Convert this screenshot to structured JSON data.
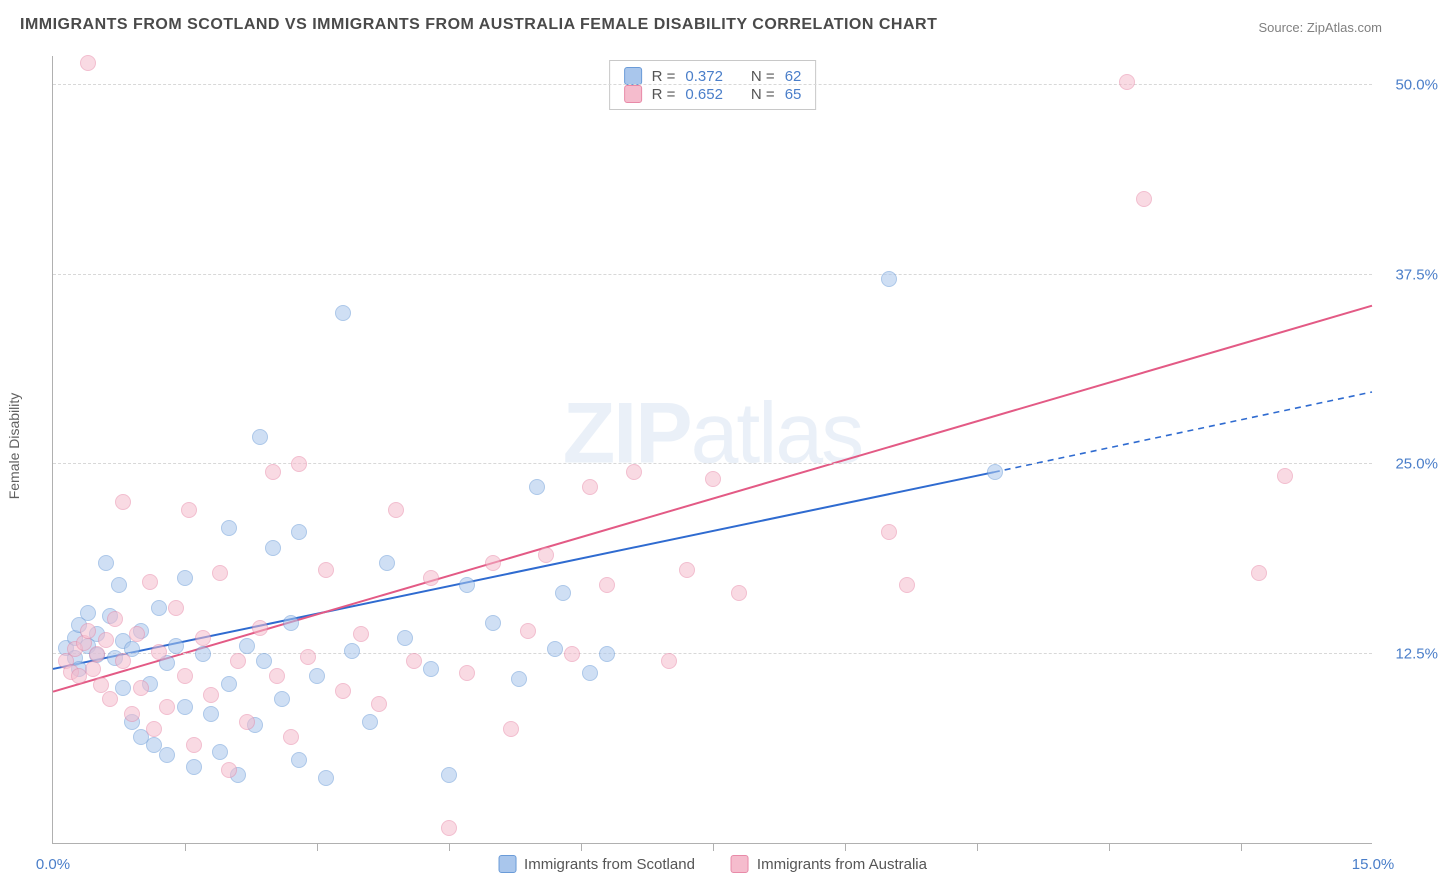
{
  "title": "IMMIGRANTS FROM SCOTLAND VS IMMIGRANTS FROM AUSTRALIA FEMALE DISABILITY CORRELATION CHART",
  "source": "Source: ZipAtlas.com",
  "ylabel": "Female Disability",
  "watermark_a": "ZIP",
  "watermark_b": "atlas",
  "chart": {
    "type": "scatter",
    "xlim": [
      0.0,
      15.0
    ],
    "ylim": [
      0.0,
      52.0
    ],
    "yticks": [
      12.5,
      25.0,
      37.5,
      50.0
    ],
    "ytick_labels": [
      "12.5%",
      "25.0%",
      "37.5%",
      "50.0%"
    ],
    "xlim_labels": [
      "0.0%",
      "15.0%"
    ],
    "xtick_positions": [
      1.5,
      3.0,
      4.5,
      6.0,
      7.5,
      9.0,
      10.5,
      12.0,
      13.5
    ],
    "background_color": "#ffffff",
    "grid_color": "#d8d8d8",
    "axis_color": "#b0b0b0",
    "marker_radius": 8,
    "marker_opacity": 0.55,
    "series": [
      {
        "name": "Immigrants from Scotland",
        "color_fill": "#a9c6ec",
        "color_stroke": "#6a9bd8",
        "r": 0.372,
        "n": 62,
        "trend": {
          "x1": 0.0,
          "y1": 11.5,
          "x2": 10.7,
          "y2": 24.5,
          "dash_x2": 15.0,
          "dash_y2": 29.8,
          "color": "#2f6bd0",
          "width": 2
        },
        "points": [
          [
            0.15,
            12.9
          ],
          [
            0.25,
            13.5
          ],
          [
            0.25,
            12.2
          ],
          [
            0.3,
            14.4
          ],
          [
            0.3,
            11.5
          ],
          [
            0.4,
            13.0
          ],
          [
            0.4,
            15.2
          ],
          [
            0.5,
            12.4
          ],
          [
            0.5,
            13.8
          ],
          [
            0.6,
            18.5
          ],
          [
            0.65,
            15.0
          ],
          [
            0.7,
            12.2
          ],
          [
            0.75,
            17.0
          ],
          [
            0.8,
            13.3
          ],
          [
            0.8,
            10.2
          ],
          [
            0.9,
            12.8
          ],
          [
            0.9,
            8.0
          ],
          [
            1.0,
            14.0
          ],
          [
            1.0,
            7.0
          ],
          [
            1.1,
            10.5
          ],
          [
            1.15,
            6.5
          ],
          [
            1.2,
            15.5
          ],
          [
            1.3,
            11.9
          ],
          [
            1.3,
            5.8
          ],
          [
            1.4,
            13.0
          ],
          [
            1.5,
            17.5
          ],
          [
            1.5,
            9.0
          ],
          [
            1.6,
            5.0
          ],
          [
            1.7,
            12.5
          ],
          [
            1.8,
            8.5
          ],
          [
            1.9,
            6.0
          ],
          [
            2.0,
            20.8
          ],
          [
            2.0,
            10.5
          ],
          [
            2.1,
            4.5
          ],
          [
            2.2,
            13.0
          ],
          [
            2.3,
            7.8
          ],
          [
            2.35,
            26.8
          ],
          [
            2.4,
            12.0
          ],
          [
            2.5,
            19.5
          ],
          [
            2.6,
            9.5
          ],
          [
            2.7,
            14.5
          ],
          [
            2.8,
            5.5
          ],
          [
            2.8,
            20.5
          ],
          [
            3.0,
            11.0
          ],
          [
            3.1,
            4.3
          ],
          [
            3.3,
            35.0
          ],
          [
            3.4,
            12.7
          ],
          [
            3.6,
            8.0
          ],
          [
            3.8,
            18.5
          ],
          [
            4.0,
            13.5
          ],
          [
            4.3,
            11.5
          ],
          [
            4.5,
            4.5
          ],
          [
            4.7,
            17.0
          ],
          [
            5.0,
            14.5
          ],
          [
            5.3,
            10.8
          ],
          [
            5.5,
            23.5
          ],
          [
            5.7,
            12.8
          ],
          [
            5.8,
            16.5
          ],
          [
            6.1,
            11.2
          ],
          [
            6.3,
            12.5
          ],
          [
            9.5,
            37.2
          ],
          [
            10.7,
            24.5
          ]
        ]
      },
      {
        "name": "Immigrants from Australia",
        "color_fill": "#f5bccd",
        "color_stroke": "#e88aa8",
        "r": 0.652,
        "n": 65,
        "trend": {
          "x1": 0.0,
          "y1": 10.0,
          "x2": 15.0,
          "y2": 35.5,
          "color": "#e35a85",
          "width": 2
        },
        "points": [
          [
            0.15,
            12.0
          ],
          [
            0.2,
            11.3
          ],
          [
            0.25,
            12.8
          ],
          [
            0.3,
            11.0
          ],
          [
            0.35,
            13.2
          ],
          [
            0.4,
            14.0
          ],
          [
            0.45,
            11.5
          ],
          [
            0.5,
            12.5
          ],
          [
            0.55,
            10.4
          ],
          [
            0.6,
            13.4
          ],
          [
            0.65,
            9.5
          ],
          [
            0.7,
            14.8
          ],
          [
            0.8,
            22.5
          ],
          [
            0.8,
            12.0
          ],
          [
            0.9,
            8.5
          ],
          [
            0.95,
            13.8
          ],
          [
            1.0,
            10.2
          ],
          [
            1.1,
            17.2
          ],
          [
            1.15,
            7.5
          ],
          [
            1.2,
            12.6
          ],
          [
            1.3,
            9.0
          ],
          [
            1.4,
            15.5
          ],
          [
            1.5,
            11.0
          ],
          [
            1.55,
            22.0
          ],
          [
            1.6,
            6.5
          ],
          [
            1.7,
            13.5
          ],
          [
            1.8,
            9.8
          ],
          [
            1.9,
            17.8
          ],
          [
            2.0,
            4.8
          ],
          [
            2.1,
            12.0
          ],
          [
            2.2,
            8.0
          ],
          [
            2.35,
            14.2
          ],
          [
            2.5,
            24.5
          ],
          [
            2.55,
            11.0
          ],
          [
            2.7,
            7.0
          ],
          [
            2.8,
            25.0
          ],
          [
            2.9,
            12.3
          ],
          [
            3.1,
            18.0
          ],
          [
            3.3,
            10.0
          ],
          [
            3.5,
            13.8
          ],
          [
            3.7,
            9.2
          ],
          [
            3.9,
            22.0
          ],
          [
            4.1,
            12.0
          ],
          [
            4.3,
            17.5
          ],
          [
            4.5,
            1.0
          ],
          [
            4.7,
            11.2
          ],
          [
            5.0,
            18.5
          ],
          [
            5.2,
            7.5
          ],
          [
            5.4,
            14.0
          ],
          [
            5.6,
            19.0
          ],
          [
            5.9,
            12.5
          ],
          [
            6.1,
            23.5
          ],
          [
            6.3,
            17.0
          ],
          [
            6.6,
            24.5
          ],
          [
            7.0,
            12.0
          ],
          [
            7.2,
            18.0
          ],
          [
            7.5,
            24.0
          ],
          [
            7.8,
            16.5
          ],
          [
            9.5,
            20.5
          ],
          [
            9.7,
            17.0
          ],
          [
            12.2,
            50.2
          ],
          [
            12.4,
            42.5
          ],
          [
            13.7,
            17.8
          ],
          [
            14.0,
            24.2
          ],
          [
            0.4,
            51.5
          ]
        ]
      }
    ]
  },
  "legend_top": {
    "r_label": "R =",
    "n_label": "N ="
  }
}
